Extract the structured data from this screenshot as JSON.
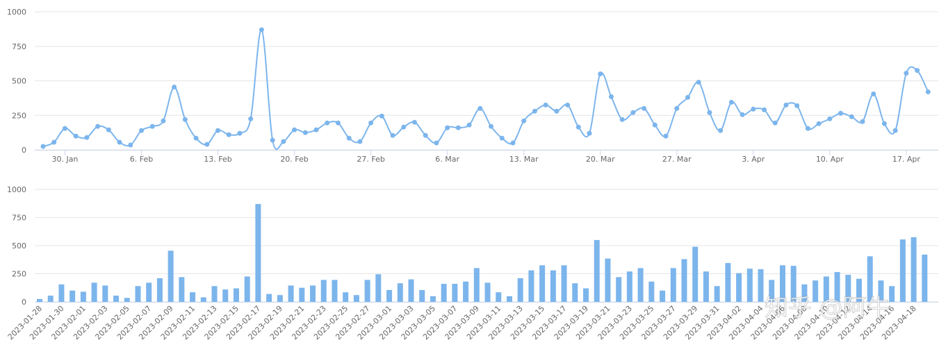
{
  "chart_data": [
    {
      "type": "line",
      "color": "#7cb5ec",
      "grid": true,
      "ylim": [
        0,
        1000
      ],
      "yticks": [
        0,
        250,
        500,
        750,
        1000
      ],
      "categories": [
        null,
        null,
        "30. Jan",
        null,
        null,
        null,
        null,
        null,
        null,
        "6. Feb",
        null,
        null,
        null,
        null,
        null,
        null,
        "13. Feb",
        null,
        null,
        null,
        null,
        null,
        null,
        "20. Feb",
        null,
        null,
        null,
        null,
        null,
        null,
        "27. Feb",
        null,
        null,
        null,
        null,
        null,
        null,
        "6. Mar",
        null,
        null,
        null,
        null,
        null,
        null,
        "13. Mar",
        null,
        null,
        null,
        null,
        null,
        null,
        "20. Mar",
        null,
        null,
        null,
        null,
        null,
        null,
        "27. Mar",
        null,
        null,
        null,
        null,
        null,
        null,
        "3. Apr",
        null,
        null,
        null,
        null,
        null,
        null,
        "10. Apr",
        null,
        null,
        null,
        null,
        null,
        null,
        "17. Apr",
        null,
        null
      ],
      "values": [
        25,
        55,
        155,
        100,
        90,
        170,
        145,
        55,
        35,
        140,
        170,
        210,
        455,
        220,
        85,
        40,
        140,
        110,
        120,
        225,
        870,
        70,
        60,
        145,
        125,
        145,
        195,
        195,
        85,
        60,
        195,
        245,
        105,
        165,
        200,
        105,
        50,
        160,
        160,
        180,
        300,
        170,
        85,
        50,
        210,
        280,
        325,
        280,
        325,
        165,
        120,
        550,
        385,
        220,
        270,
        300,
        180,
        100,
        300,
        380,
        490,
        270,
        140,
        345,
        255,
        295,
        290,
        195,
        325,
        320,
        155,
        190,
        225,
        265,
        240,
        205,
        405,
        190,
        140,
        555,
        575,
        420
      ]
    },
    {
      "type": "bar",
      "color": "#7cb5ec",
      "grid": true,
      "ylim": [
        0,
        1000
      ],
      "yticks": [
        0,
        250,
        500,
        750,
        1000
      ],
      "categories": [
        "2023-01-28",
        null,
        "2023-01-30",
        null,
        "2023-02-01",
        null,
        "2023-02-03",
        null,
        "2023-02-05",
        null,
        "2023-02-07",
        null,
        "2023-02-09",
        null,
        "2023-02-11",
        null,
        "2023-02-13",
        null,
        "2023-02-15",
        null,
        "2023-02-17",
        null,
        "2023-02-19",
        null,
        "2023-02-21",
        null,
        "2023-02-23",
        null,
        "2023-02-25",
        null,
        "2023-02-27",
        null,
        "2023-03-01",
        null,
        "2023-03-03",
        null,
        "2023-03-05",
        null,
        "2023-03-07",
        null,
        "2023-03-09",
        null,
        "2023-03-11",
        null,
        "2023-03-13",
        null,
        "2023-03-15",
        null,
        "2023-03-17",
        null,
        "2023-03-19",
        null,
        "2023-03-21",
        null,
        "2023-03-23",
        null,
        "2023-03-25",
        null,
        "2023-03-27",
        null,
        "2023-03-29",
        null,
        "2023-03-31",
        null,
        "2023-04-02",
        null,
        "2023-04-04",
        null,
        "2023-04-06",
        null,
        "2023-04-08",
        null,
        "2023-04-10",
        null,
        "2023-04-12",
        null,
        "2023-04-14",
        null,
        "2023-04-16",
        null,
        "2023-04-18",
        null
      ],
      "values": [
        25,
        55,
        155,
        100,
        90,
        170,
        145,
        55,
        35,
        140,
        170,
        210,
        455,
        220,
        85,
        40,
        140,
        110,
        120,
        225,
        870,
        70,
        60,
        145,
        125,
        145,
        195,
        195,
        85,
        60,
        195,
        245,
        105,
        165,
        200,
        105,
        50,
        160,
        160,
        180,
        300,
        170,
        85,
        50,
        210,
        280,
        325,
        280,
        325,
        165,
        120,
        550,
        385,
        220,
        270,
        300,
        180,
        100,
        300,
        380,
        490,
        270,
        140,
        345,
        255,
        295,
        290,
        195,
        325,
        320,
        155,
        190,
        225,
        265,
        240,
        205,
        405,
        190,
        140,
        555,
        575,
        420
      ]
    }
  ],
  "watermark": "知乎 @阿牛"
}
